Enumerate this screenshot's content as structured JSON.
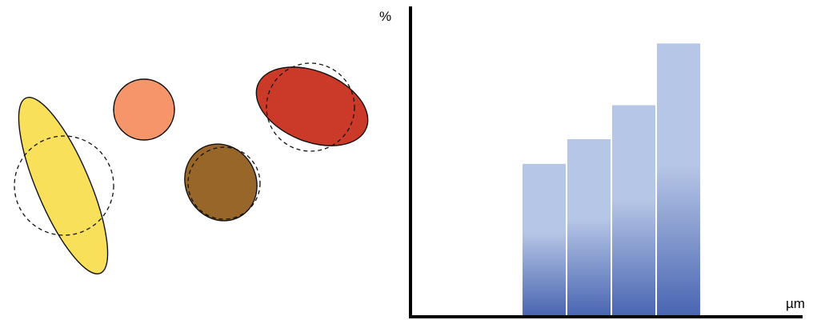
{
  "particles": [
    {
      "name": "yellow-ellipse-particle",
      "color": "#f9e05a"
    },
    {
      "name": "orange-circle-particle",
      "color": "#f7956a"
    },
    {
      "name": "brown-ellipse-particle",
      "color": "#986628"
    },
    {
      "name": "red-ellipse-particle",
      "color": "#cb3a28"
    }
  ],
  "chart_data": {
    "type": "bar",
    "ylabel": "%",
    "xlabel": "µm",
    "values": [
      49,
      57,
      68,
      88
    ],
    "ylim": [
      0,
      100
    ],
    "bar_color_top": "#b6c6e6",
    "bar_color_bottom": "#4a66b2",
    "axis_color": "#000000"
  }
}
